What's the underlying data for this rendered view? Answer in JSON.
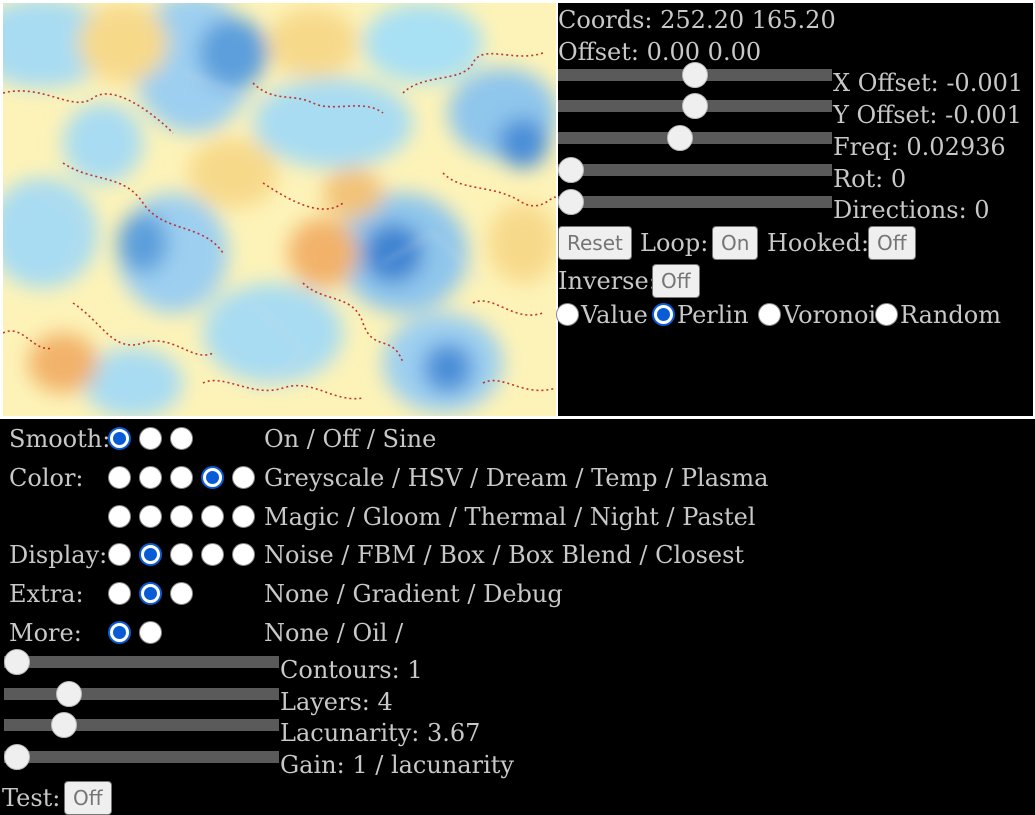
{
  "preview": {
    "coords_text": "Coords: 252.20 165.20",
    "offset_text": "Offset: 0.00 0.00"
  },
  "sliders": {
    "x_offset": {
      "label": "X Offset: -0.001",
      "value": 0.5
    },
    "y_offset": {
      "label": "Y Offset: -0.001",
      "value": 0.5
    },
    "freq": {
      "label": "Freq: 0.02936",
      "value": 0.44
    },
    "rot": {
      "label": "Rot: 0",
      "value": 0.0
    },
    "directions": {
      "label": "Directions: 0",
      "value": 0.0
    },
    "contours": {
      "label": "Contours: 1",
      "value": 0.0
    },
    "layers": {
      "label": "Layers: 4",
      "value": 0.21
    },
    "lacunarity": {
      "label": "Lacunarity: 3.67",
      "value": 0.19
    },
    "gain": {
      "label": "Gain: 1 / lacunarity",
      "value": 0.0
    }
  },
  "buttons": {
    "reset": "Reset",
    "loop_label": "Loop:",
    "loop": "On",
    "hooked_label": "Hooked:",
    "hooked": "Off",
    "inverse_label": "Inverse:",
    "inverse": "Off",
    "test_label": "Test:",
    "test": "Off"
  },
  "noise_type": {
    "options": [
      "Value",
      "Perlin",
      "Voronoi",
      "Random"
    ],
    "selected": "Perlin"
  },
  "options": {
    "smooth": {
      "label": "Smooth:",
      "text": "On / Off / Sine",
      "count": 3,
      "selected": 0
    },
    "color_row1": {
      "label": "Color:",
      "text": "Greyscale / HSV / Dream / Temp / Plasma",
      "count": 5,
      "selected": 3
    },
    "color_row2": {
      "label": "",
      "text": "Magic / Gloom / Thermal / Night / Pastel",
      "count": 5,
      "selected": -1
    },
    "display": {
      "label": "Display:",
      "text": "Noise / FBM / Box / Box Blend / Closest",
      "count": 5,
      "selected": 1
    },
    "extra": {
      "label": "Extra:",
      "text": "None / Gradient / Debug",
      "count": 3,
      "selected": 1
    },
    "more": {
      "label": "More:",
      "text": "None / Oil /",
      "count": 2,
      "selected": 0
    }
  },
  "colors": {
    "accent": "#0a5cd6",
    "background": "#000000",
    "text": "#c8c8c8"
  }
}
